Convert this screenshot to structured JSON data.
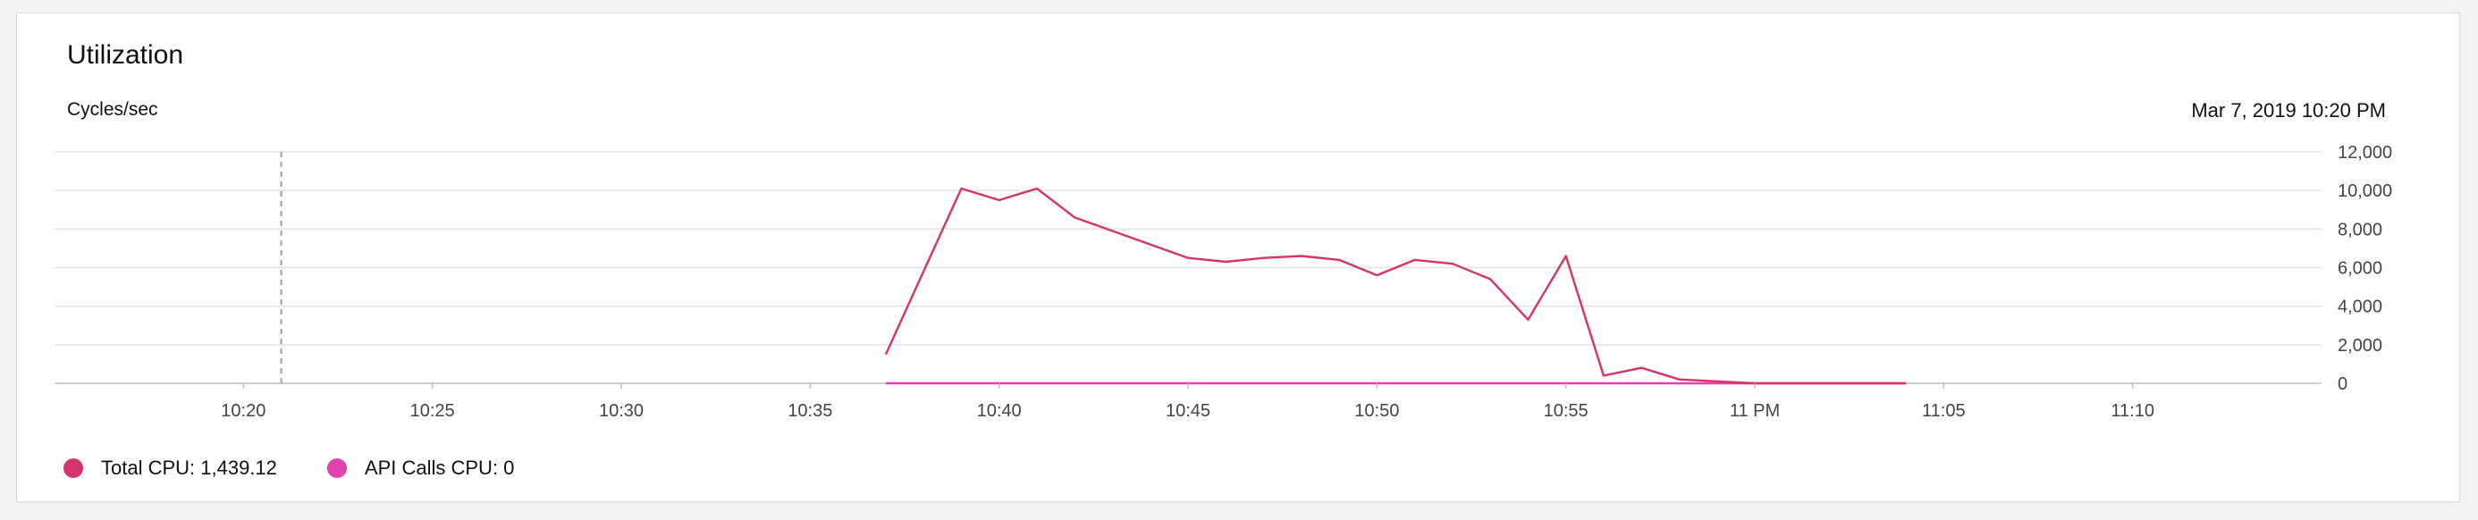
{
  "card": {
    "title": "Utilization",
    "unit_label": "Cycles/sec",
    "timestamp": "Mar 7, 2019 10:20 PM"
  },
  "legend": {
    "items": [
      {
        "label": "Total CPU: 1,439.12",
        "color": "#d6336c"
      },
      {
        "label": "API Calls CPU: 0",
        "color": "#e040b0"
      }
    ]
  },
  "chart_data": {
    "type": "line",
    "title": "Utilization",
    "subtitle": "",
    "xlabel": "",
    "ylabel": "Cycles/sec",
    "ylim": [
      0,
      12000
    ],
    "y_ticks": [
      {
        "value": 0,
        "label": "0"
      },
      {
        "value": 2000,
        "label": "2,000"
      },
      {
        "value": 4000,
        "label": "4,000"
      },
      {
        "value": 6000,
        "label": "6,000"
      },
      {
        "value": 8000,
        "label": "8,000"
      },
      {
        "value": 10000,
        "label": "10,000"
      },
      {
        "value": 12000,
        "label": "12,000"
      }
    ],
    "x_range": [
      "10:15",
      "11:15"
    ],
    "x_ticks": [
      {
        "value": "10:20",
        "label": "10:20"
      },
      {
        "value": "10:25",
        "label": "10:25"
      },
      {
        "value": "10:30",
        "label": "10:30"
      },
      {
        "value": "10:35",
        "label": "10:35"
      },
      {
        "value": "10:40",
        "label": "10:40"
      },
      {
        "value": "10:45",
        "label": "10:45"
      },
      {
        "value": "10:50",
        "label": "10:50"
      },
      {
        "value": "10:55",
        "label": "10:55"
      },
      {
        "value": "11:00",
        "label": "11 PM"
      },
      {
        "value": "11:05",
        "label": "11:05"
      },
      {
        "value": "11:10",
        "label": "11:10"
      }
    ],
    "marker_time": "10:21",
    "grid": true,
    "legend_position": "bottom-left",
    "series": [
      {
        "color": "#d6336c",
        "points": [
          [
            "10:37",
            1500
          ],
          [
            "10:38",
            5800
          ],
          [
            "10:39",
            10100
          ],
          [
            "10:40",
            9500
          ],
          [
            "10:41",
            10100
          ],
          [
            "10:42",
            8600
          ],
          [
            "10:43",
            7900
          ],
          [
            "10:44",
            7200
          ],
          [
            "10:45",
            6500
          ],
          [
            "10:46",
            6300
          ],
          [
            "10:47",
            6500
          ],
          [
            "10:48",
            6600
          ],
          [
            "10:49",
            6400
          ],
          [
            "10:50",
            5600
          ],
          [
            "10:51",
            6400
          ],
          [
            "10:52",
            6200
          ],
          [
            "10:53",
            5400
          ],
          [
            "10:54",
            3300
          ],
          [
            "10:55",
            6600
          ],
          [
            "10:56",
            400
          ],
          [
            "10:57",
            800
          ],
          [
            "10:58",
            200
          ],
          [
            "10:59",
            100
          ],
          [
            "11:00",
            0
          ],
          [
            "11:01",
            0
          ],
          [
            "11:02",
            0
          ],
          [
            "11:03",
            0
          ],
          [
            "11:04",
            0
          ]
        ]
      },
      {
        "color": "#e040b0",
        "points": [
          [
            "10:37",
            0
          ],
          [
            "10:38",
            0
          ],
          [
            "10:39",
            0
          ],
          [
            "10:40",
            0
          ],
          [
            "10:41",
            0
          ],
          [
            "10:42",
            0
          ],
          [
            "10:43",
            0
          ],
          [
            "10:44",
            0
          ],
          [
            "10:45",
            0
          ],
          [
            "10:46",
            0
          ],
          [
            "10:47",
            0
          ],
          [
            "10:48",
            0
          ],
          [
            "10:49",
            0
          ],
          [
            "10:50",
            0
          ],
          [
            "10:51",
            0
          ],
          [
            "10:52",
            0
          ],
          [
            "10:53",
            0
          ],
          [
            "10:54",
            0
          ],
          [
            "10:55",
            0
          ],
          [
            "10:56",
            0
          ],
          [
            "10:57",
            0
          ],
          [
            "10:58",
            0
          ],
          [
            "10:59",
            0
          ],
          [
            "11:00",
            0
          ],
          [
            "11:01",
            0
          ],
          [
            "11:02",
            0
          ],
          [
            "11:03",
            0
          ],
          [
            "11:04",
            0
          ]
        ]
      }
    ]
  }
}
